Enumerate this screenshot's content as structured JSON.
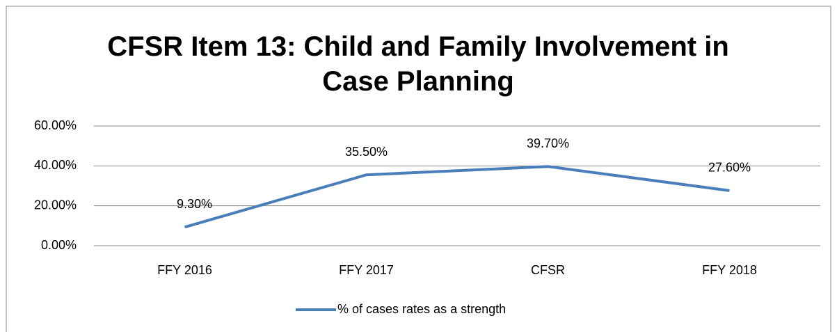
{
  "chart_data": {
    "type": "line",
    "title": "CFSR Item 13: Child and Family Involvement in Case Planning",
    "categories": [
      "FFY 2016",
      "FFY 2017",
      "CFSR",
      "FFY 2018"
    ],
    "series": [
      {
        "name": "% of cases rates as a strength",
        "color": "#4a7ebb",
        "values": [
          9.3,
          35.5,
          39.7,
          27.6
        ],
        "value_labels": [
          "9.30%",
          "35.50%",
          "39.70%",
          "27.60%"
        ]
      }
    ],
    "ylim": [
      0,
      60
    ],
    "yticks": [
      {
        "value": 0,
        "label": "0.00%"
      },
      {
        "value": 20,
        "label": "20.00%"
      },
      {
        "value": 40,
        "label": "40.00%"
      },
      {
        "value": 60,
        "label": "60.00%"
      }
    ],
    "grid": true,
    "legend": "bottom"
  }
}
